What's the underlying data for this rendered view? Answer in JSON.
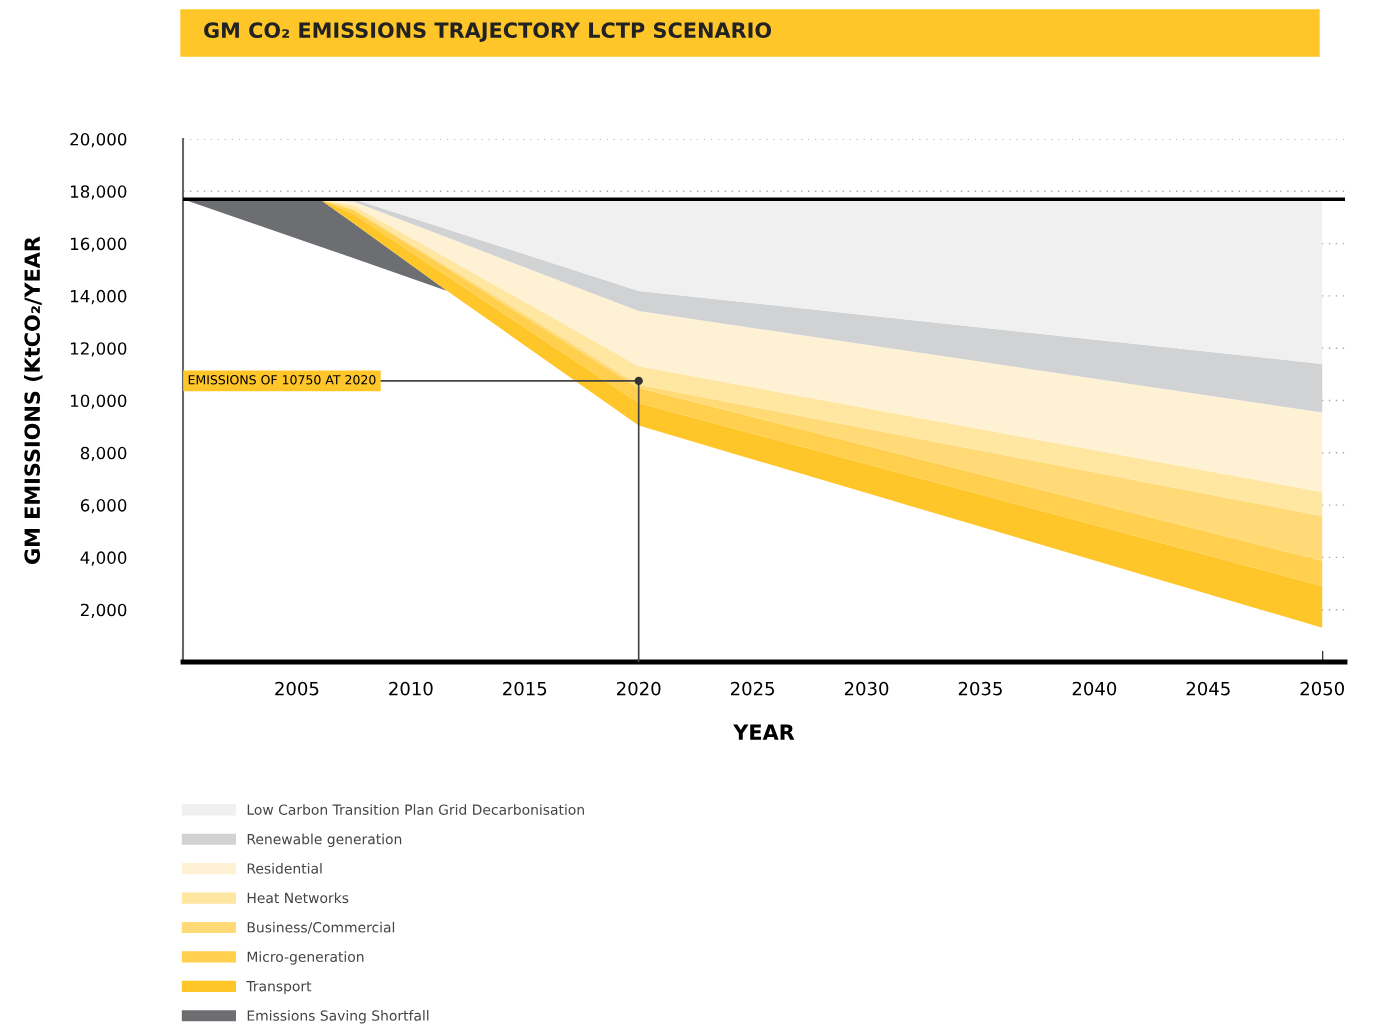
{
  "chart_data": {
    "type": "area",
    "stacked": true,
    "title": "GM CO₂ EMISSIONS TRAJECTORY LCTP SCENARIO",
    "xlabel": "YEAR",
    "ylabel": "GM EMISSIONS (KtCO₂/YEAR",
    "x": [
      2000,
      2006,
      2007.5,
      2011.6,
      2020,
      2050
    ],
    "series": [
      {
        "color": "#ffffff",
        "values": [
          17700,
          15890,
          15440,
          14190,
          9040,
          1310
        ]
      },
      {
        "name": "Emissions Saving Shortfall",
        "color": "#6d6e71",
        "values": [
          0,
          1810,
          1330,
          0,
          null,
          null
        ]
      },
      {
        "name": "Transport",
        "color": "#ffc629",
        "values": [
          null,
          0,
          350,
          560,
          860,
          1600
        ]
      },
      {
        "name": "Micro-generation",
        "color": "#ffcf4d",
        "values": [
          null,
          0,
          150,
          300,
          575,
          960
        ]
      },
      {
        "name": "Business/Commercial",
        "color": "#ffda76",
        "values": [
          null,
          0,
          50,
          70,
          125,
          1710
        ]
      },
      {
        "name": "Heat Networks",
        "color": "#ffe6a1",
        "values": [
          null,
          0,
          130,
          320,
          710,
          920
        ]
      },
      {
        "name": "Residential",
        "color": "#fff2d4",
        "values": [
          null,
          0,
          150,
          790,
          2110,
          3040
        ]
      },
      {
        "name": "Renewable generation",
        "color": "#d1d2d4",
        "values": [
          null,
          0,
          100,
          320,
          770,
          1860
        ]
      },
      {
        "name": "Low Carbon Transition Plan Grid Decarbonisation",
        "color": "#f0f0f0",
        "values": [
          null,
          null,
          0,
          1150,
          3510,
          6300
        ]
      }
    ],
    "xlim": [
      2000,
      2051
    ],
    "xticks": [
      {
        "value": 2000,
        "label": null
      },
      2005,
      2010,
      2015,
      2020,
      2025,
      2030,
      2035,
      2040,
      2045,
      2050
    ],
    "ylim": [
      0,
      20000
    ],
    "yticks": [
      {
        "value": 0,
        "label": null
      },
      {
        "value": 2000,
        "label": "2,000"
      },
      {
        "value": 4000,
        "label": "4,000"
      },
      {
        "value": 6000,
        "label": "6,000"
      },
      {
        "value": 8000,
        "label": "8,000"
      },
      {
        "value": 10000,
        "label": "10,000"
      },
      {
        "value": 12000,
        "label": "12,000"
      },
      {
        "value": 14000,
        "label": "14,000"
      },
      {
        "value": 16000,
        "label": "16,000"
      },
      {
        "value": 18000,
        "label": "18,000"
      },
      {
        "value": 20000,
        "label": "20,000"
      }
    ],
    "ref_lines": [
      {
        "axis": "y",
        "value": 17700,
        "color": "#000000"
      }
    ],
    "annotations": [
      {
        "text": "EMISSIONS OF 10750 AT 2020",
        "x": 2020,
        "y": 10750
      }
    ],
    "grid": "y",
    "legend": "bottom left"
  }
}
